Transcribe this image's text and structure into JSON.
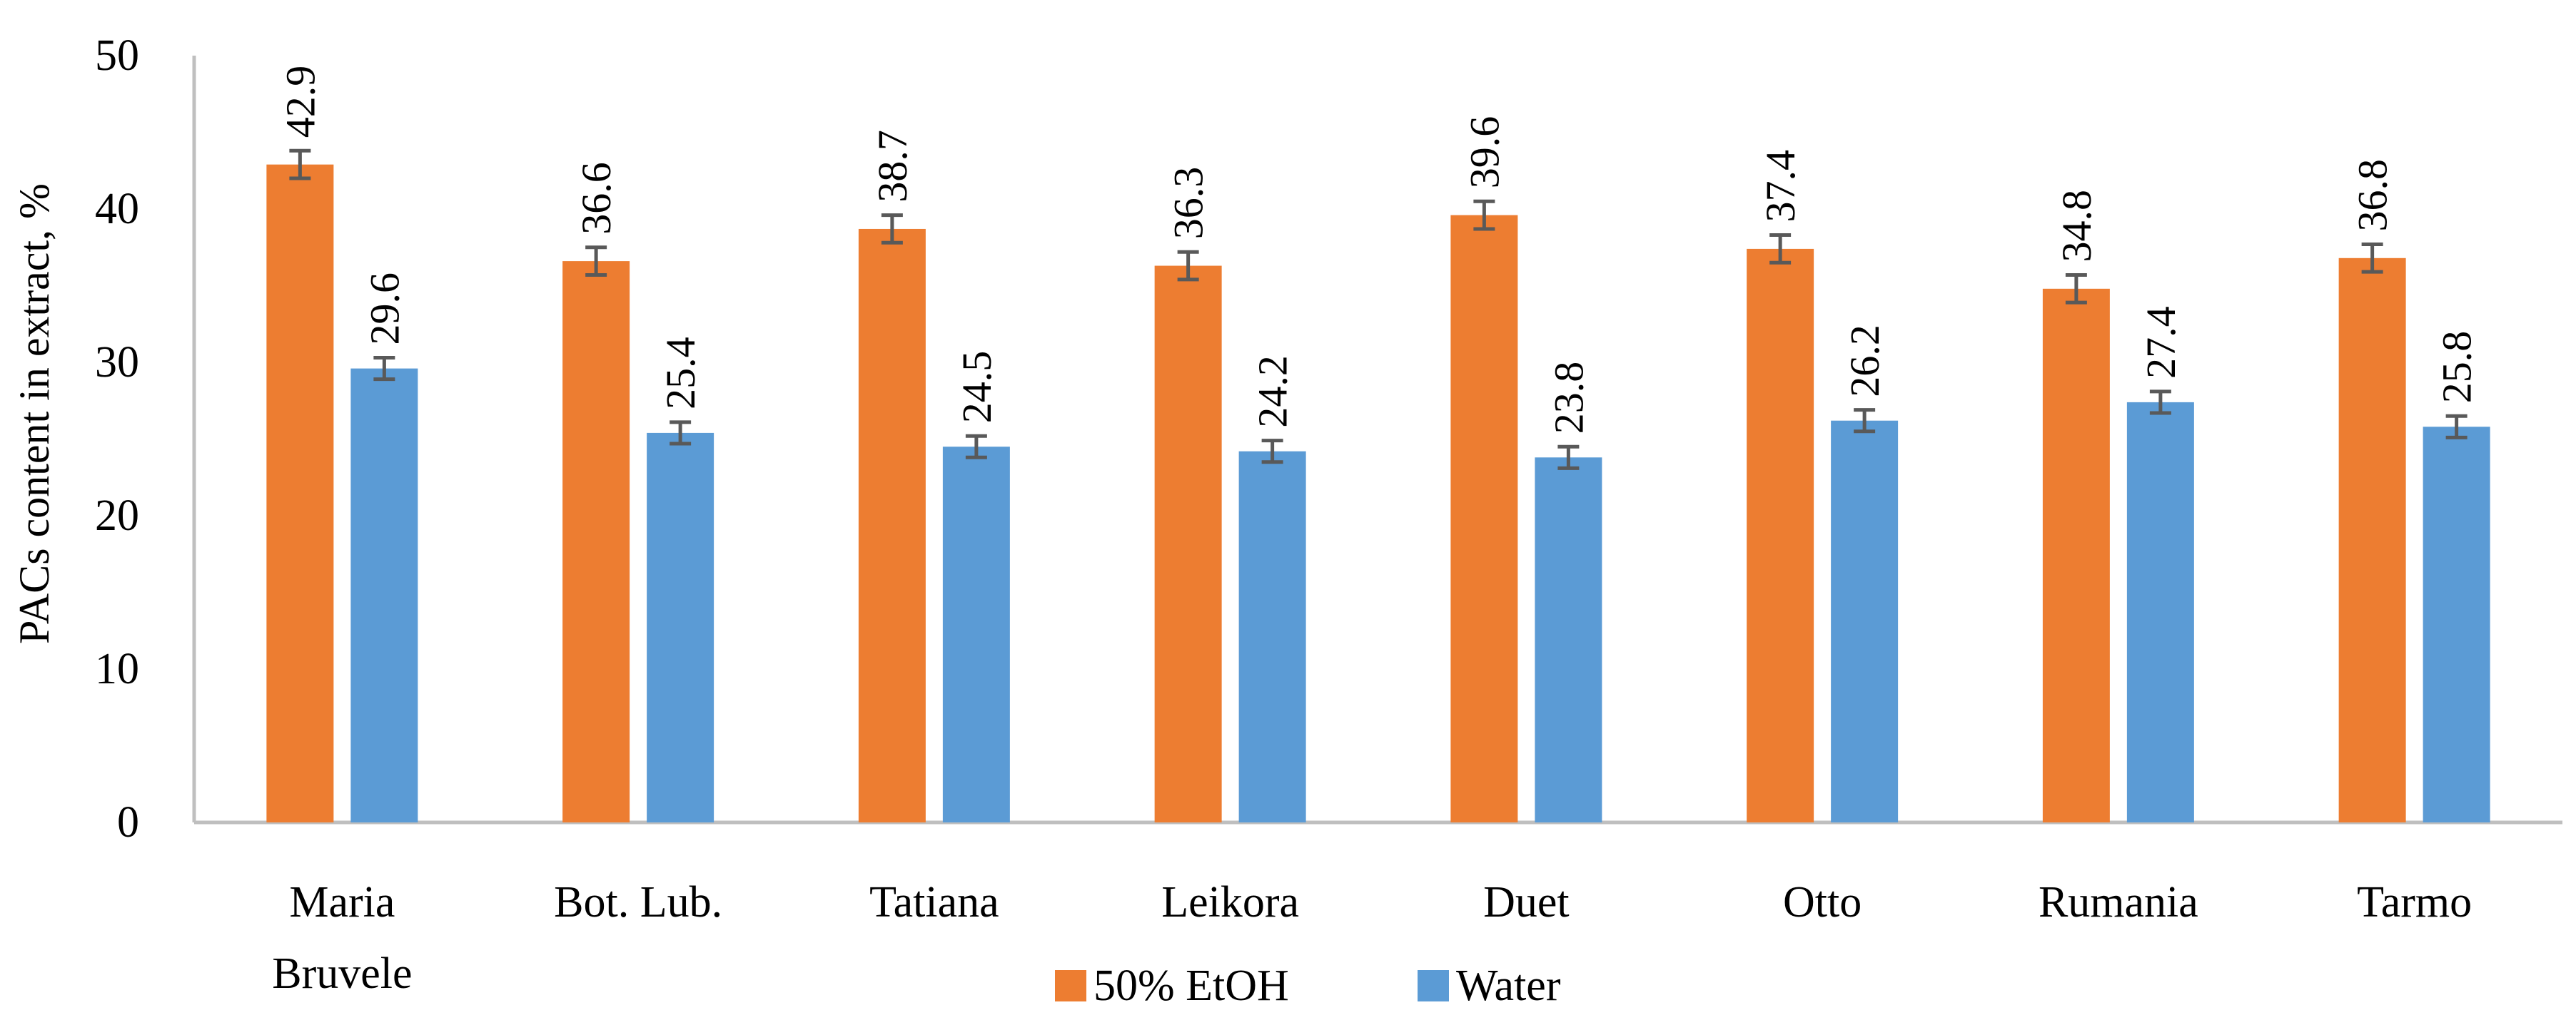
{
  "chart_data": {
    "type": "bar",
    "title": "",
    "xlabel": "",
    "ylabel": "PACs content in extract, %",
    "ylim": [
      0,
      50
    ],
    "yticks": [
      0,
      10,
      20,
      30,
      40,
      50
    ],
    "grid": false,
    "legend_position": "bottom-center",
    "categories": [
      "Maria Bruvele",
      "Bot. Lub.",
      "Tatiana",
      "Leikora",
      "Duet",
      "Otto",
      "Rumania",
      "Tarmo"
    ],
    "category_lines": [
      [
        "Maria",
        "Bruvele"
      ],
      [
        "Bot. Lub."
      ],
      [
        "Tatiana"
      ],
      [
        "Leikora"
      ],
      [
        "Duet"
      ],
      [
        "Otto"
      ],
      [
        "Rumania"
      ],
      [
        "Tarmo"
      ]
    ],
    "series": [
      {
        "name": "50% EtOH",
        "color": "#ED7D31",
        "values": [
          42.9,
          36.6,
          38.7,
          36.3,
          39.6,
          37.4,
          34.8,
          36.8
        ],
        "labels": [
          "42.9",
          "36.6",
          "38.7",
          "36.3",
          "39.6",
          "37.4",
          "34.8",
          "36.8"
        ],
        "error": [
          0.9,
          0.9,
          0.9,
          0.9,
          0.9,
          0.9,
          0.9,
          0.9
        ]
      },
      {
        "name": "Water",
        "color": "#5B9BD5",
        "values": [
          29.6,
          25.4,
          24.5,
          24.2,
          23.8,
          26.2,
          27.4,
          25.8
        ],
        "labels": [
          "29.6",
          "25.4",
          "24.5",
          "24.2",
          "23.8",
          "26.2",
          "27.4",
          "25.8"
        ],
        "error": [
          0.7,
          0.7,
          0.7,
          0.7,
          0.7,
          0.7,
          0.7,
          0.7
        ]
      }
    ],
    "error_bar_color": "#595959",
    "axis_color": "#BFBFBF"
  }
}
